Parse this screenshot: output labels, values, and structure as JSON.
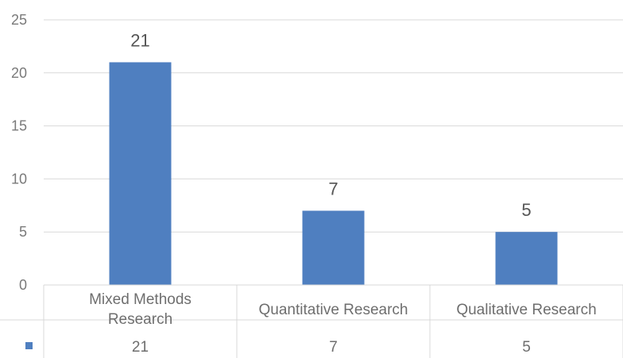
{
  "chart_data": {
    "type": "bar",
    "categories": [
      [
        "Mixed Methods",
        "Research"
      ],
      [
        "Quantitative Research"
      ],
      [
        "Qualitative Research"
      ]
    ],
    "values": [
      21,
      7,
      5
    ],
    "data_labels": [
      "21",
      "7",
      "5"
    ],
    "table_values": [
      "21",
      "7",
      "5"
    ],
    "y_ticks": [
      "0",
      "5",
      "10",
      "15",
      "20",
      "25"
    ],
    "ylim": [
      0,
      25
    ],
    "grid": true,
    "data_table": true,
    "legend": "none",
    "bar_color": "#4f7fc0",
    "grid_color": "#d9d9d9"
  }
}
